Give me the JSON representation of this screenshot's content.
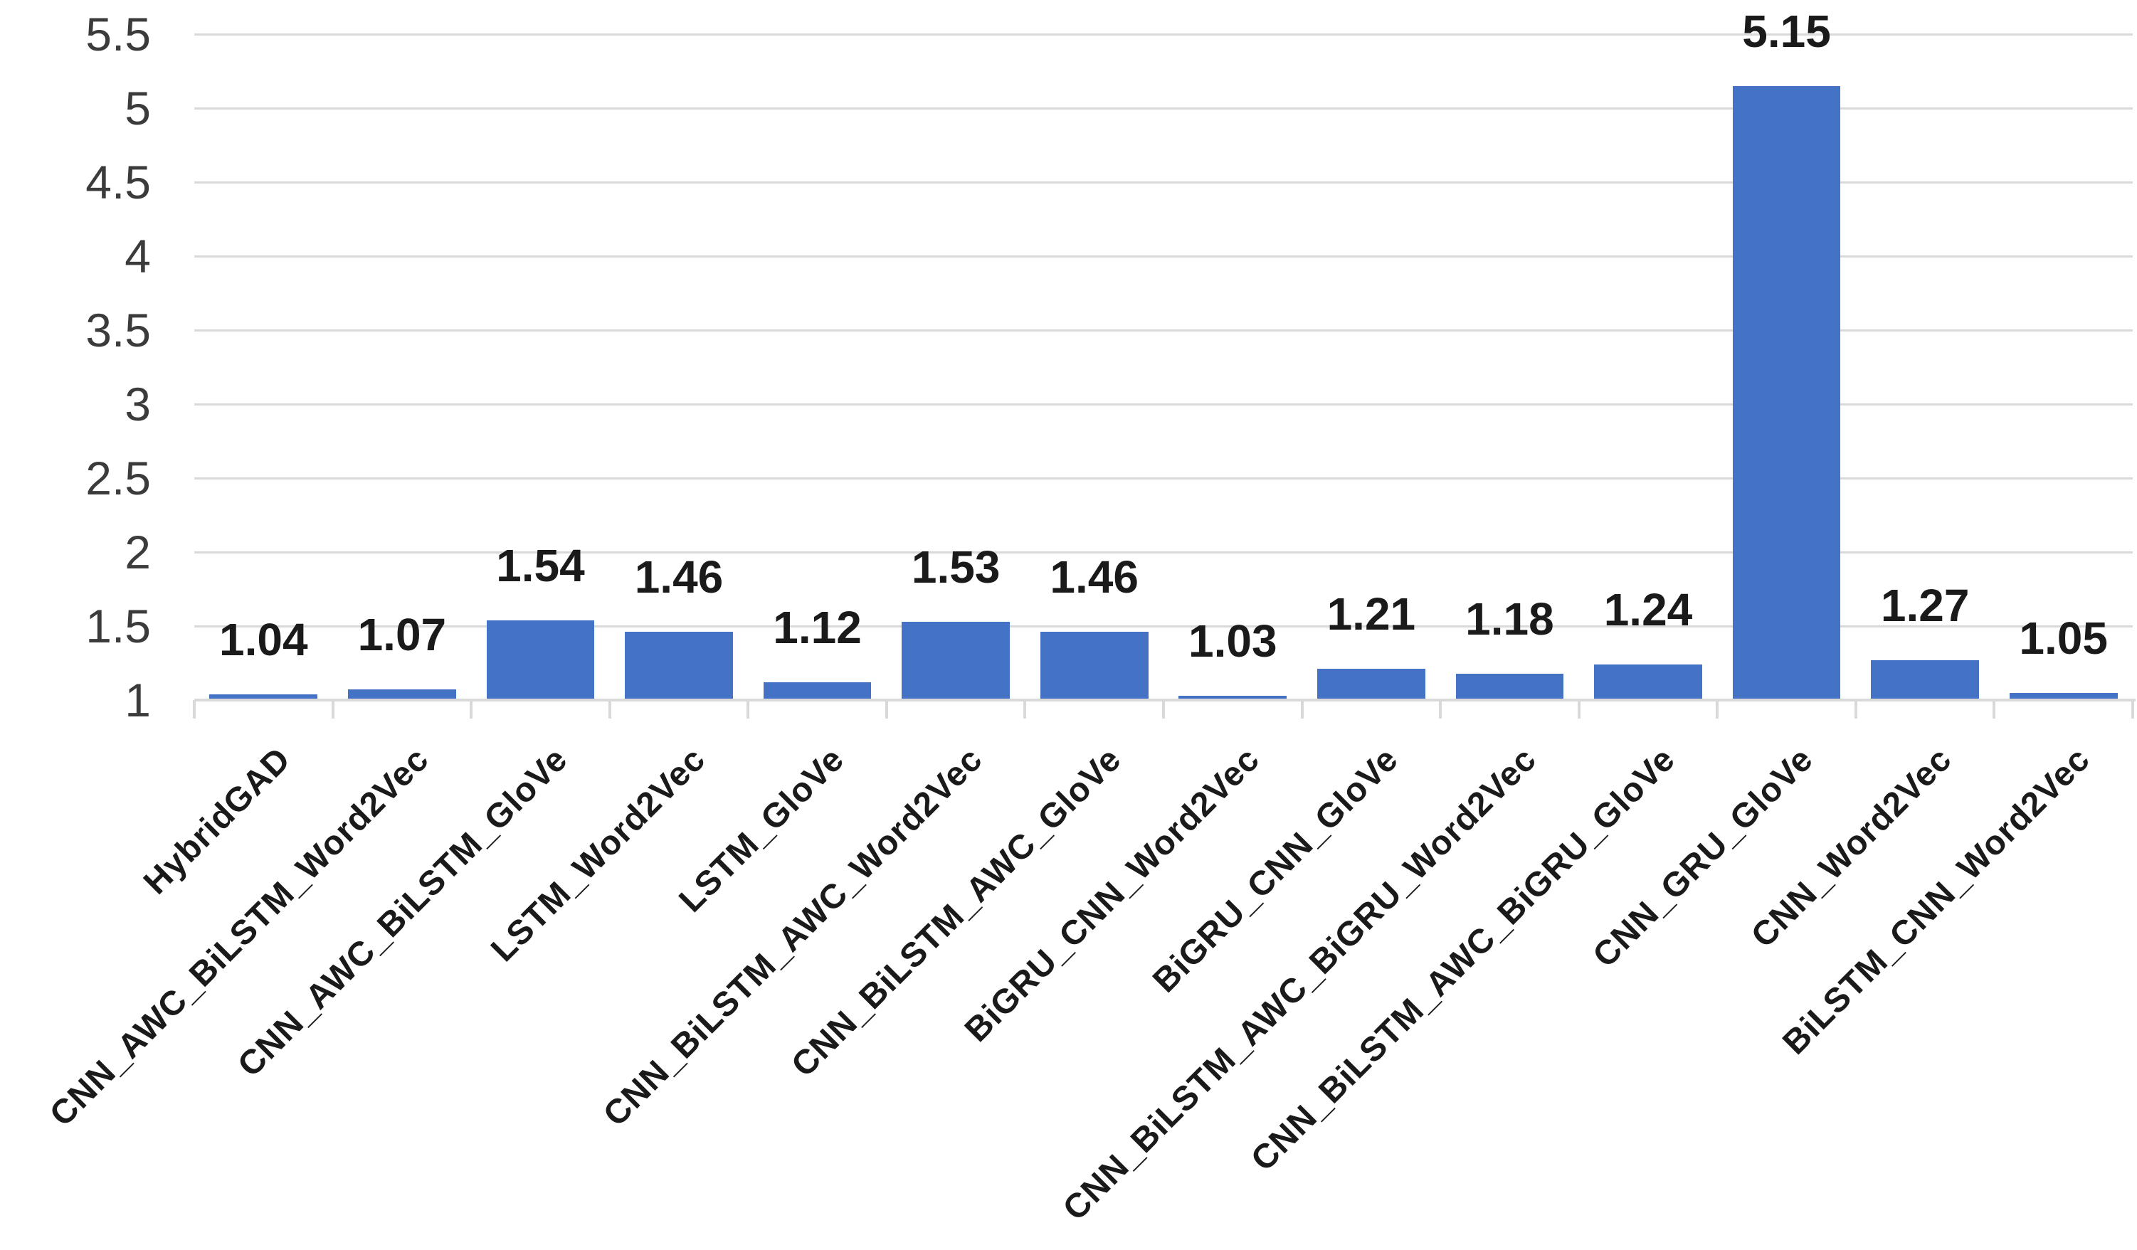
{
  "chart_data": {
    "type": "bar",
    "title": "",
    "xlabel": "",
    "ylabel": "",
    "categories": [
      "HybridGAD",
      "CNN_AWC_BiLSTM_Word2Vec",
      "CNN_AWC_BiLSTM_GloVe",
      "LSTM_Word2Vec",
      "LSTM_GloVe",
      "CNN_BiLSTM_AWC_Word2Vec",
      "CNN_BiLSTM_AWC_GloVe",
      "BiGRU_CNN_Word2Vec",
      "BiGRU_CNN_GloVe",
      "CNN_BiLSTM_AWC_BiGRU_Word2Vec",
      "CNN_BiLSTM_AWC_BiGRU_GloVe",
      "CNN_GRU_GloVe",
      "CNN_Word2Vec",
      "BiLSTM_CNN_Word2Vec"
    ],
    "values": [
      1.04,
      1.07,
      1.54,
      1.46,
      1.12,
      1.53,
      1.46,
      1.03,
      1.21,
      1.18,
      1.24,
      5.15,
      1.27,
      1.05
    ],
    "data_labels": [
      "1.04",
      "1.07",
      "1.54",
      "1.46",
      "1.12",
      "1.53",
      "1.46",
      "1.03",
      "1.21",
      "1.18",
      "1.24",
      "5.15",
      "1.27",
      "1.05"
    ],
    "y_ticks": [
      "1",
      "1.5",
      "2",
      "2.5",
      "3",
      "3.5",
      "4",
      "4.5",
      "5",
      "5.5"
    ],
    "ylim": [
      1,
      5.5
    ],
    "grid": true,
    "legend": false,
    "bar_color": "#4472C4",
    "gridline_color": "#D9D9D9",
    "axis_color": "#D9D9D9",
    "y_tick_label_color": "#3B3B3B",
    "data_label_color": "#1A1A1A",
    "x_label_color": "#1A1A1A",
    "background_color": "#FFFFFF"
  }
}
